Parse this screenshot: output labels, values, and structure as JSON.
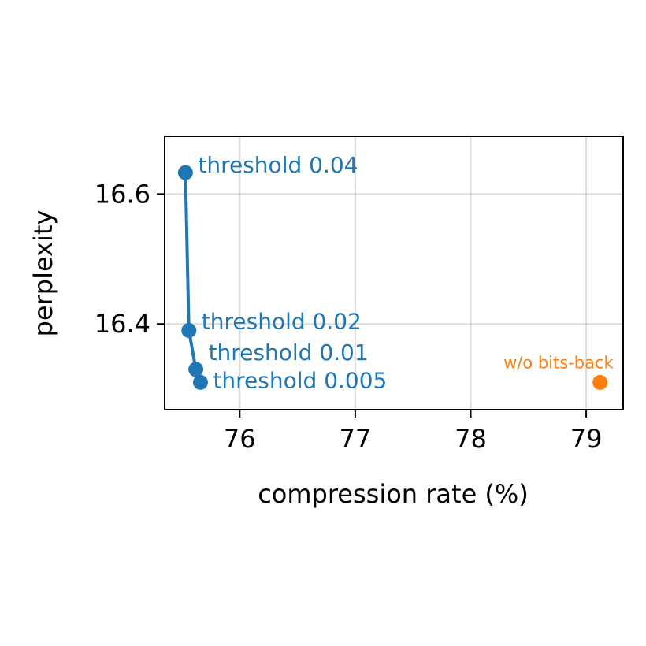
{
  "chart_data": {
    "type": "line",
    "title": "",
    "xlabel": "compression rate (%)",
    "ylabel": "perplexity",
    "xlim": [
      75.35,
      79.32
    ],
    "ylim": [
      16.268,
      16.689
    ],
    "xticks": [
      76,
      77,
      78,
      79
    ],
    "yticks": [
      16.4,
      16.6
    ],
    "xtick_labels": [
      "76",
      "77",
      "78",
      "79"
    ],
    "ytick_labels": [
      "16.4",
      "16.6"
    ],
    "grid": true,
    "colors": {
      "blue": "#1f77b4",
      "orange": "#ff7f0e"
    },
    "series": [
      {
        "points": [
          {
            "x": 75.53,
            "y": 16.633,
            "label": "threshold 0.04"
          },
          {
            "x": 75.56,
            "y": 16.39,
            "label": "threshold 0.02"
          },
          {
            "x": 75.62,
            "y": 16.33,
            "label": "threshold 0.01"
          },
          {
            "x": 75.66,
            "y": 16.31,
            "label": "threshold 0.005"
          }
        ]
      },
      {
        "points": [
          {
            "x": 79.12,
            "y": 16.31,
            "label": "w/o bits-back"
          }
        ]
      }
    ]
  }
}
